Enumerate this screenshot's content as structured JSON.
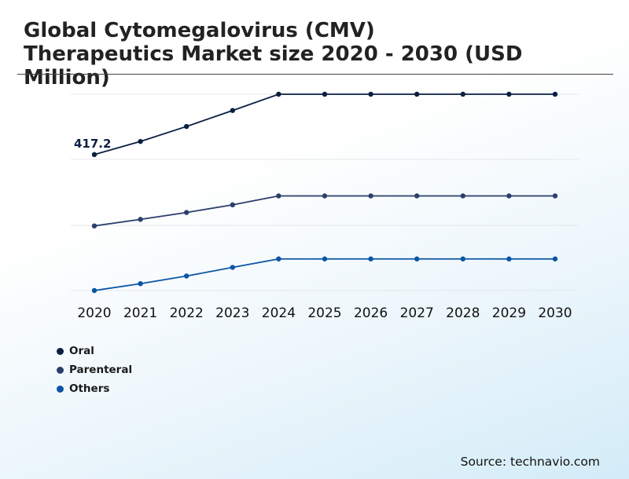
{
  "chart_data": {
    "type": "line",
    "title": "Global Cytomegalovirus (CMV) Therapeutics Market size 2020 - 2030 (USD Million)",
    "xlabel": "",
    "ylabel": "",
    "categories": [
      "2020",
      "2021",
      "2022",
      "2023",
      "2024",
      "2025",
      "2026",
      "2027",
      "2028",
      "2029",
      "2030"
    ],
    "series": [
      {
        "name": "Oral",
        "color": "#0b1f42",
        "values": [
          417.2,
          425.4,
          434.8,
          444.8,
          455.0,
          455.0,
          455.0,
          455.0,
          455.0,
          455.0,
          455.0
        ]
      },
      {
        "name": "Parenteral",
        "color": "#2b3f6b",
        "values": [
          372.5,
          376.6,
          380.9,
          385.7,
          391.3,
          391.3,
          391.3,
          391.3,
          391.3,
          391.3,
          391.3
        ]
      },
      {
        "name": "Others",
        "color": "#0a55a5",
        "values": [
          332.0,
          336.3,
          341.1,
          346.5,
          351.8,
          351.8,
          351.8,
          351.8,
          351.8,
          351.8,
          351.8
        ]
      }
    ],
    "ylim": [
      332,
      455
    ],
    "data_labels": [
      {
        "series": "Oral",
        "category": "2020",
        "text": "417.2"
      }
    ],
    "grid": true,
    "legend": "bottom-left"
  },
  "source": "Source: technavio.com"
}
